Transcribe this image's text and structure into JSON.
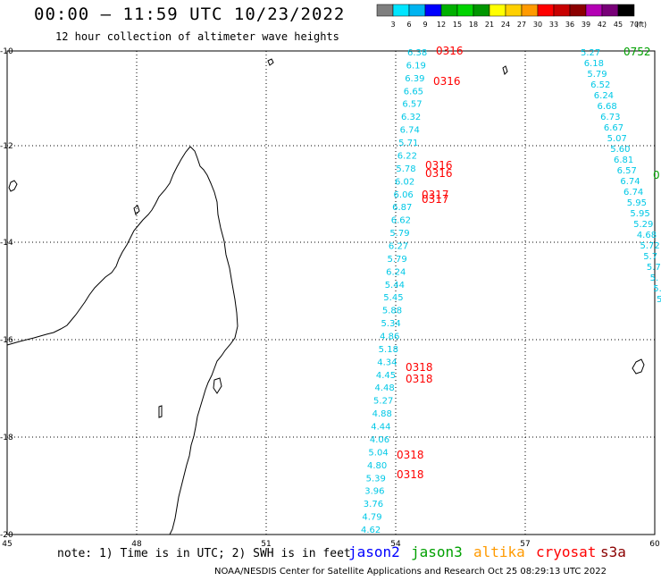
{
  "header": {
    "title": "00:00 – 11:59 UTC 10/23/2022",
    "subtitle": "12 hour collection of altimeter wave heights"
  },
  "legend": {
    "unit": "(ft)",
    "ticks": [
      "3",
      "6",
      "9",
      "12",
      "15",
      "18",
      "21",
      "24",
      "27",
      "30",
      "33",
      "36",
      "39",
      "42",
      "45",
      "70"
    ],
    "colors": [
      "#7f7f7f",
      "#00e5ff",
      "#00b4f0",
      "#0000ff",
      "#00b000",
      "#00d400",
      "#009600",
      "#ffff00",
      "#ffd000",
      "#ff9a00",
      "#ff0000",
      "#c80000",
      "#8b0000",
      "#b400b4",
      "#780078",
      "#000000"
    ]
  },
  "axes": {
    "lat_labels": [
      "-10",
      "-12",
      "-14",
      "-16",
      "-18",
      "-20"
    ],
    "lon_labels": [
      "45",
      "48",
      "51",
      "54",
      "57",
      "60"
    ]
  },
  "footer": {
    "note": "note: 1) Time is in UTC; 2) SWH is in feet",
    "credit": "NOAA/NESDIS Center for Satellite Applications and Research    Oct 25 08:29:13 UTC 2022",
    "satellites": [
      {
        "name": "jason2",
        "color": "#0000ff"
      },
      {
        "name": "jason3",
        "color": "#00a000"
      },
      {
        "name": "altika",
        "color": "#ff9a00"
      },
      {
        "name": "cryosat",
        "color": "#ff0000"
      },
      {
        "name": "s3a",
        "color": "#8b0000"
      }
    ]
  },
  "tracks": {
    "color_wave": "#00c8e6",
    "color_time_red": "#ff0000",
    "color_time_green": "#00a000",
    "track1_values": [
      "6.38",
      "6.19",
      "6.39",
      "6.65",
      "6.57",
      "6.32",
      "6.74",
      "5.71",
      "6.22",
      "5.78",
      "6.02",
      "6.06",
      "6.87",
      "6.62",
      "5.79",
      "6.27",
      "5.79",
      "6.24",
      "5.44",
      "5.45",
      "5.88",
      "5.34",
      "4.86",
      "5.18",
      "4.34",
      "4.45",
      "4.48",
      "5.27",
      "4.88",
      "4.44",
      "4.06",
      "5.04",
      "4.80",
      "5.39",
      "3.96",
      "3.76",
      "4.79",
      "4.62"
    ],
    "track1_times": [
      "0316",
      "0316",
      "0316",
      "0316",
      "0317",
      "0317",
      "0318",
      "0318",
      "0318",
      "0318"
    ],
    "track2_values": [
      "5.27",
      "6.18",
      "5.79",
      "6.52",
      "6.24",
      "6.68",
      "6.73",
      "6.67",
      "5.07",
      "5.60",
      "6.81",
      "6.57",
      "6.74",
      "6.74",
      "5.95",
      "5.95",
      "5.29",
      "4.68",
      "5.72",
      "5.7",
      "5.7",
      "5.",
      "5.",
      "5"
    ],
    "track2_times": [
      "0752",
      "0"
    ]
  }
}
